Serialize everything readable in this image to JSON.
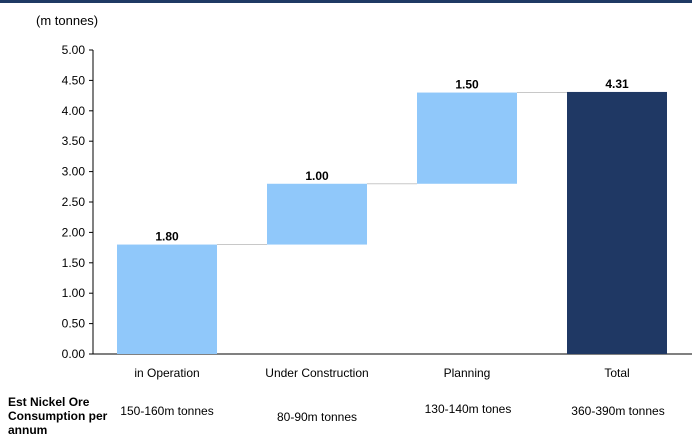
{
  "chart_data": {
    "type": "bar",
    "subtype": "waterfall",
    "unit_label": "(m tonnes)",
    "categories": [
      "in Operation",
      "Under Construction",
      "Planning",
      "Total"
    ],
    "values": [
      1.8,
      1.0,
      1.5,
      4.31
    ],
    "value_labels": [
      "1.80",
      "1.00",
      "1.50",
      "4.31"
    ],
    "ylim": [
      0,
      5
    ],
    "yticks": [
      "0.00",
      "0.50",
      "1.00",
      "1.50",
      "2.00",
      "2.50",
      "3.00",
      "3.50",
      "4.00",
      "4.50",
      "5.00"
    ],
    "colors": {
      "increment": "#90c8fa",
      "total": "#1f3864",
      "connector": "#c8c8c8",
      "top_rule": "#1f3a64"
    },
    "grid": false
  },
  "consumption": {
    "header": "Est Nickel Ore Consumption per annum",
    "values": [
      "150-160m tonnes",
      "80-90m tonnes",
      "130-140m tones",
      "360-390m tonnes"
    ]
  }
}
